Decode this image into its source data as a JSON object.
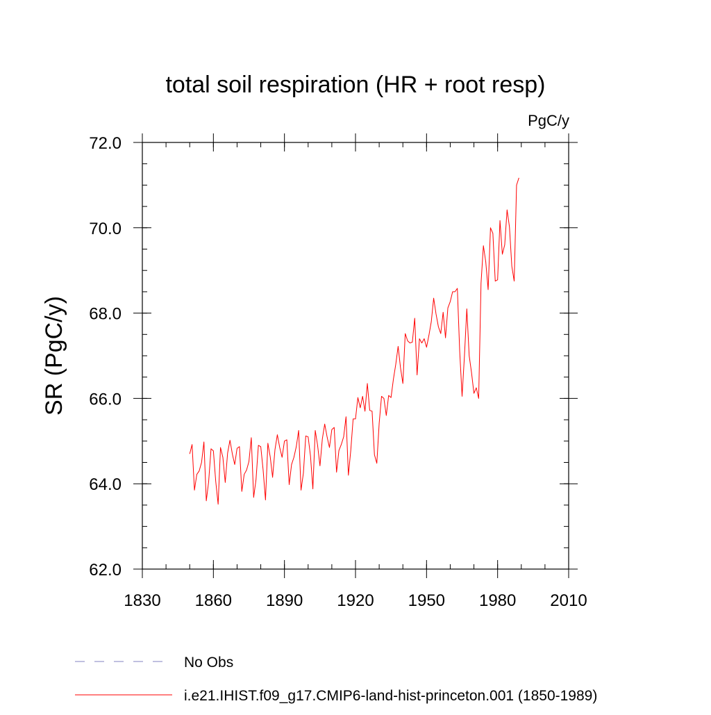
{
  "chart_data": {
    "type": "line",
    "title": "total soil respiration (HR + root resp)",
    "units_label": "PgC/y",
    "xlabel": "",
    "ylabel": "SR  (PgC/y)",
    "xlim": [
      1830,
      2010
    ],
    "ylim": [
      62.0,
      72.0
    ],
    "x_ticks": [
      "1830",
      "1860",
      "1890",
      "1920",
      "1950",
      "1980",
      "2010"
    ],
    "y_ticks": [
      "62.0",
      "64.0",
      "66.0",
      "68.0",
      "70.0",
      "72.0"
    ],
    "grid": false,
    "legend_position": "bottom",
    "legend": [
      {
        "label": "No Obs",
        "color": "#8080c0",
        "style": "dashed"
      },
      {
        "label": "i.e21.IHIST.f09_g17.CMIP6-land-hist-princeton.001 (1850-1989)",
        "color": "#ff0000",
        "style": "solid"
      }
    ],
    "series": [
      {
        "name": "i.e21.IHIST.f09_g17.CMIP6-land-hist-princeton.001 (1850-1989)",
        "color": "#ff0000",
        "x_start": 1850,
        "x_step": 1,
        "values": [
          64.7,
          64.92,
          63.85,
          64.22,
          64.3,
          64.5,
          64.98,
          63.6,
          64.05,
          64.82,
          64.77,
          64.05,
          63.52,
          64.85,
          64.62,
          64.03,
          64.72,
          65.02,
          64.7,
          64.45,
          64.83,
          64.87,
          63.82,
          64.22,
          64.32,
          64.52,
          65.08,
          63.68,
          64.1,
          64.9,
          64.87,
          64.32,
          63.62,
          64.95,
          64.63,
          64.15,
          64.8,
          65.15,
          64.85,
          64.62,
          65.0,
          65.03,
          63.98,
          64.45,
          64.62,
          64.87,
          65.25,
          63.85,
          64.25,
          65.12,
          65.1,
          64.65,
          63.88,
          65.25,
          64.9,
          64.42,
          65.05,
          65.4,
          65.1,
          64.85,
          65.27,
          65.32,
          64.27,
          64.78,
          64.92,
          65.1,
          65.57,
          64.2,
          64.78,
          65.52,
          65.52,
          66.02,
          65.78,
          66.05,
          65.7,
          66.35,
          65.72,
          65.7,
          64.68,
          64.48,
          65.42,
          66.05,
          66.0,
          65.6,
          66.07,
          66.02,
          66.45,
          66.8,
          67.22,
          66.72,
          66.35,
          67.52,
          67.35,
          67.3,
          67.32,
          67.88,
          66.55,
          67.4,
          67.3,
          67.4,
          67.2,
          67.48,
          67.8,
          68.35,
          67.98,
          67.68,
          67.52,
          68.02,
          67.42,
          68.12,
          68.27,
          68.5,
          68.5,
          68.58,
          67.1,
          66.05,
          67.0,
          68.1,
          67.0,
          66.6,
          66.12,
          66.25,
          66.0,
          68.7,
          69.58,
          69.2,
          68.55,
          70.0,
          69.87,
          68.75,
          68.78,
          70.17,
          69.38,
          69.6,
          70.42,
          70.02,
          69.1,
          68.75,
          71.0,
          71.17
        ]
      }
    ]
  }
}
